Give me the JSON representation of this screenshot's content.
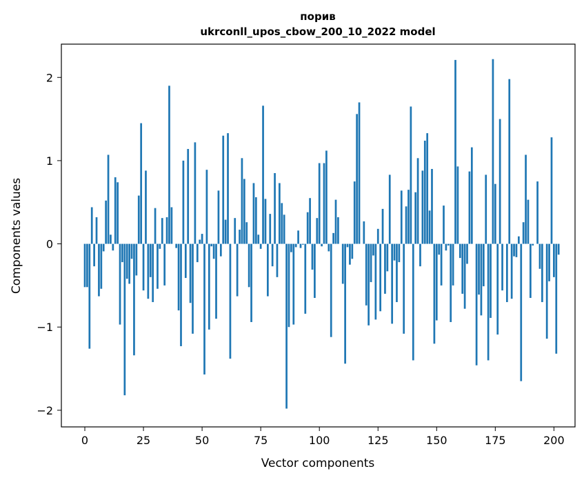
{
  "chart_data": {
    "type": "bar",
    "title_line1": "порив",
    "title_line2": "ukrconll_upos_cbow_200_10_2022 model",
    "xlabel": "Vector components",
    "ylabel": "Components values",
    "xlim": [
      -10,
      209
    ],
    "ylim": [
      -2.2,
      2.4
    ],
    "x_ticks": [
      0,
      25,
      50,
      75,
      100,
      125,
      150,
      175,
      200
    ],
    "x_tick_labels": [
      "0",
      "25",
      "50",
      "75",
      "100",
      "125",
      "150",
      "175",
      "200"
    ],
    "y_ticks": [
      -2,
      -1,
      0,
      1,
      2
    ],
    "y_tick_labels": [
      "−2",
      "−1",
      "0",
      "1",
      "2"
    ],
    "grid": false,
    "bar_color": "#1f77b4",
    "series": [
      {
        "values": [
          -0.52,
          -0.52,
          -1.26,
          0.44,
          -0.27,
          0.32,
          -0.63,
          -0.54,
          -0.09,
          0.52,
          1.07,
          0.11,
          -0.08,
          0.8,
          0.74,
          -0.97,
          -0.22,
          -1.82,
          -0.42,
          -0.48,
          -0.18,
          -1.34,
          -0.38,
          0.58,
          1.45,
          -0.56,
          0.88,
          -0.66,
          -0.4,
          -0.7,
          0.43,
          -0.54,
          -0.06,
          0.31,
          -0.5,
          0.32,
          1.9,
          0.44,
          0.0,
          -0.05,
          -0.8,
          -1.23,
          1.0,
          -0.41,
          1.14,
          -0.71,
          -1.08,
          1.22,
          -0.22,
          0.05,
          0.12,
          -1.57,
          0.89,
          -1.03,
          -0.03,
          -0.18,
          -0.9,
          0.64,
          -0.15,
          1.3,
          0.29,
          1.33,
          -1.38,
          0.0,
          0.31,
          -0.63,
          0.17,
          1.03,
          0.78,
          0.26,
          -0.52,
          -0.94,
          0.73,
          0.56,
          0.11,
          -0.06,
          1.66,
          0.54,
          -0.63,
          0.36,
          -0.27,
          0.85,
          -0.4,
          0.73,
          0.49,
          0.35,
          -1.98,
          -1.0,
          -0.1,
          -0.97,
          -0.04,
          0.16,
          -0.05,
          -0.01,
          -0.84,
          0.38,
          0.55,
          -0.31,
          -0.65,
          0.31,
          0.97,
          -0.03,
          0.97,
          1.12,
          -0.09,
          -1.12,
          0.13,
          0.53,
          0.32,
          0.0,
          -0.48,
          -1.44,
          -0.04,
          -0.25,
          -0.18,
          0.75,
          1.56,
          1.7,
          0.0,
          0.27,
          -0.74,
          -0.98,
          -0.46,
          -0.14,
          -0.91,
          0.18,
          -0.81,
          0.42,
          -0.6,
          -0.33,
          0.83,
          -0.96,
          -0.2,
          -0.7,
          -0.22,
          0.64,
          -1.08,
          0.45,
          0.65,
          1.65,
          -1.4,
          0.62,
          1.03,
          -0.27,
          0.88,
          1.24,
          1.33,
          0.4,
          0.9,
          -1.2,
          -0.92,
          -0.13,
          -0.5,
          0.46,
          -0.08,
          -0.02,
          -0.94,
          -0.5,
          2.21,
          0.93,
          -0.17,
          -0.6,
          -0.78,
          -0.24,
          0.87,
          1.16,
          0.0,
          -1.46,
          -0.61,
          -0.86,
          -0.51,
          0.83,
          -1.4,
          -0.89,
          2.22,
          0.72,
          -1.09,
          1.5,
          -0.56,
          0.0,
          -0.7,
          1.98,
          -0.66,
          -0.15,
          -0.16,
          0.09,
          -1.65,
          0.26,
          1.07,
          0.53,
          -0.65,
          -0.02,
          0.0,
          0.75,
          -0.3,
          -0.7,
          0.0,
          -1.14,
          -0.45,
          1.28,
          -0.4,
          -1.32,
          -0.13
        ]
      }
    ]
  }
}
